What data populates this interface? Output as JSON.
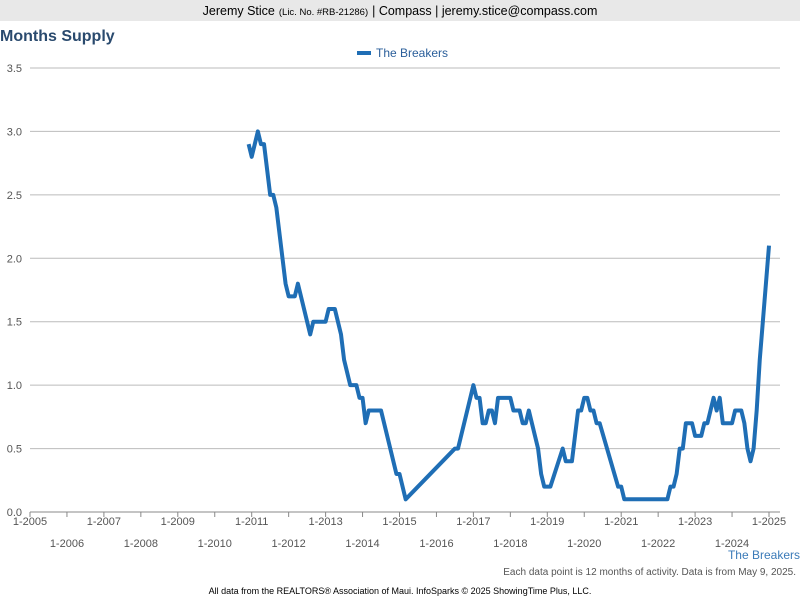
{
  "header": {
    "name": "Jeremy Stice",
    "license": "(Lic. No. #RB-21286)",
    "rest": "| Compass | jeremy.stice@compass.com"
  },
  "chart_data": {
    "type": "line",
    "title": "Months Supply",
    "x": [
      "12-2010",
      "1-2011",
      "2-2011",
      "3-2011",
      "4-2011",
      "5-2011",
      "7-2011",
      "8-2011",
      "9-2011",
      "12-2011",
      "1-2012",
      "3-2012",
      "4-2012",
      "8-2012",
      "9-2012",
      "1-2013",
      "2-2013",
      "4-2013",
      "6-2013",
      "7-2013",
      "9-2013",
      "11-2013",
      "12-2013",
      "1-2014",
      "2-2014",
      "3-2014",
      "7-2014",
      "12-2014",
      "1-2015",
      "3-2015",
      "7-2016",
      "8-2016",
      "1-2017",
      "2-2017",
      "3-2017",
      "4-2017",
      "5-2017",
      "6-2017",
      "7-2017",
      "8-2017",
      "9-2017",
      "1-2018",
      "2-2018",
      "4-2018",
      "5-2018",
      "6-2018",
      "7-2018",
      "8-2018",
      "10-2018",
      "11-2018",
      "12-2018",
      "1-2019",
      "2-2019",
      "6-2019",
      "7-2019",
      "9-2019",
      "10-2019",
      "11-2019",
      "12-2019",
      "1-2020",
      "2-2020",
      "3-2020",
      "4-2020",
      "5-2020",
      "6-2020",
      "12-2020",
      "1-2021",
      "2-2021",
      "4-2022",
      "5-2022",
      "6-2022",
      "7-2022",
      "8-2022",
      "9-2022",
      "10-2022",
      "12-2022",
      "1-2023",
      "3-2023",
      "4-2023",
      "5-2023",
      "6-2023",
      "7-2023",
      "8-2023",
      "9-2023",
      "10-2023",
      "1-2024",
      "2-2024",
      "4-2024",
      "5-2024",
      "6-2024",
      "7-2024",
      "8-2024",
      "9-2024",
      "10-2024",
      "11-2024",
      "12-2024",
      "1-2025"
    ],
    "series": [
      {
        "name": "The Breakers",
        "color": "#1f6eb5",
        "values": [
          2.9,
          2.8,
          2.9,
          3.0,
          2.9,
          2.9,
          2.5,
          2.5,
          2.4,
          1.8,
          1.7,
          1.7,
          1.8,
          1.4,
          1.5,
          1.5,
          1.6,
          1.6,
          1.4,
          1.2,
          1.0,
          1.0,
          0.9,
          0.9,
          0.7,
          0.8,
          0.8,
          0.3,
          0.3,
          0.1,
          0.5,
          0.5,
          1.0,
          0.9,
          0.9,
          0.7,
          0.7,
          0.8,
          0.8,
          0.7,
          0.9,
          0.9,
          0.8,
          0.8,
          0.7,
          0.7,
          0.8,
          0.7,
          0.5,
          0.3,
          0.2,
          0.2,
          0.2,
          0.5,
          0.4,
          0.4,
          0.6,
          0.8,
          0.8,
          0.9,
          0.9,
          0.8,
          0.8,
          0.7,
          0.7,
          0.2,
          0.2,
          0.1,
          0.1,
          0.2,
          0.2,
          0.3,
          0.5,
          0.5,
          0.7,
          0.7,
          0.6,
          0.6,
          0.7,
          0.7,
          0.8,
          0.9,
          0.8,
          0.9,
          0.7,
          0.7,
          0.8,
          0.8,
          0.7,
          0.5,
          0.4,
          0.5,
          0.8,
          1.2,
          1.5,
          1.8,
          2.1
        ]
      }
    ],
    "xlim": [
      "1-2005",
      "1-2025"
    ],
    "xticks": [
      "1-2005",
      "1-2006",
      "1-2007",
      "1-2008",
      "1-2009",
      "1-2010",
      "1-2011",
      "1-2012",
      "1-2013",
      "1-2014",
      "1-2015",
      "1-2016",
      "1-2017",
      "1-2018",
      "1-2019",
      "1-2020",
      "1-2021",
      "1-2022",
      "1-2023",
      "1-2024",
      "1-2025"
    ],
    "ylim": [
      0,
      3.5
    ],
    "yticks": [
      {
        "value": 0,
        "label": "0.0"
      },
      0.5,
      {
        "value": 1,
        "label": "1.0"
      },
      1.5,
      {
        "value": 2,
        "label": "2.0"
      },
      2.5,
      {
        "value": 3,
        "label": "3.0"
      },
      3.5
    ],
    "grid": true,
    "legend": "top",
    "axis_series_label": "The Breakers",
    "note": "Each data point is 12 months of activity. Data is from May 9, 2025.",
    "source": "All data from the REALTORS® Association of Maui. InfoSparks © 2025 ShowingTime Plus, LLC."
  }
}
